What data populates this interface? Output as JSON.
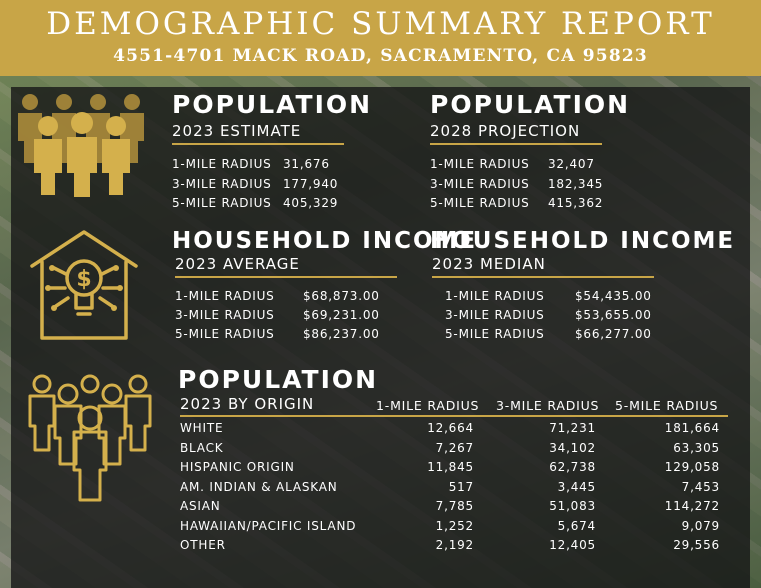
{
  "header": {
    "title": "DEMOGRAPHIC SUMMARY REPORT",
    "address": "4551-4701 MACK ROAD, SACRAMENTO, CA 95823"
  },
  "colors": {
    "gold": "#c8a547",
    "panel": "#141416"
  },
  "pop2023": {
    "title": "POPULATION",
    "subtitle": "2023 ESTIMATE",
    "icon": "people-group-icon",
    "rows": [
      {
        "label": "1-MILE RADIUS",
        "value": "31,676"
      },
      {
        "label": "3-MILE RADIUS",
        "value": "177,940"
      },
      {
        "label": "5-MILE RADIUS",
        "value": "405,329"
      }
    ]
  },
  "pop2028": {
    "title": "POPULATION",
    "subtitle": "2028 PROJECTION",
    "rows": [
      {
        "label": "1-MILE RADIUS",
        "value": "32,407"
      },
      {
        "label": "3-MILE RADIUS",
        "value": "182,345"
      },
      {
        "label": "5-MILE RADIUS",
        "value": "415,362"
      }
    ]
  },
  "income_avg": {
    "title": "HOUSEHOLD INCOME",
    "subtitle": "2023 AVERAGE",
    "icon": "house-dollar-bulb-icon",
    "rows": [
      {
        "label": "1-MILE RADIUS",
        "value": "$68,873.00"
      },
      {
        "label": "3-MILE RADIUS",
        "value": "$69,231.00"
      },
      {
        "label": "5-MILE RADIUS",
        "value": "$86,237.00"
      }
    ]
  },
  "income_median": {
    "title": "HOUSEHOLD INCOME",
    "subtitle": "2023 MEDIAN",
    "rows": [
      {
        "label": "1-MILE RADIUS",
        "value": "$54,435.00"
      },
      {
        "label": "3-MILE RADIUS",
        "value": "$53,655.00"
      },
      {
        "label": "5-MILE RADIUS",
        "value": "$66,277.00"
      }
    ]
  },
  "origin": {
    "title": "POPULATION",
    "subtitle": "2023 BY ORIGIN",
    "icon": "people-outline-icon",
    "columns": [
      "1-MILE RADIUS",
      "3-MILE RADIUS",
      "5-MILE RADIUS"
    ],
    "rows": [
      {
        "label": "WHITE",
        "v1": "12,664",
        "v3": "71,231",
        "v5": "181,664"
      },
      {
        "label": "BLACK",
        "v1": "7,267",
        "v3": "34,102",
        "v5": "63,305"
      },
      {
        "label": "HISPANIC ORIGIN",
        "v1": "11,845",
        "v3": "62,738",
        "v5": "129,058"
      },
      {
        "label": "AM. INDIAN & ALASKAN",
        "v1": "517",
        "v3": "3,445",
        "v5": "7,453"
      },
      {
        "label": "ASIAN",
        "v1": "7,785",
        "v3": "51,083",
        "v5": "114,272"
      },
      {
        "label": "HAWAIIAN/PACIFIC ISLAND",
        "v1": "1,252",
        "v3": "5,674",
        "v5": "9,079"
      },
      {
        "label": "OTHER",
        "v1": "2,192",
        "v3": "12,405",
        "v5": "29,556"
      }
    ]
  }
}
